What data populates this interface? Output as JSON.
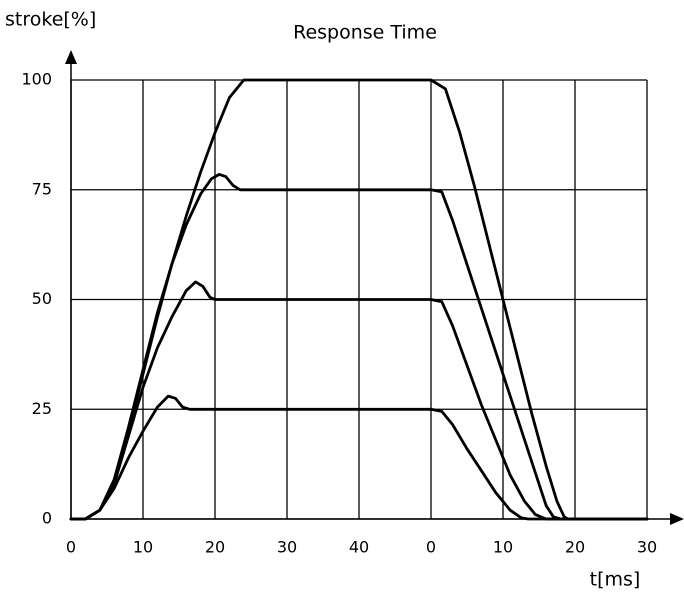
{
  "chart_data": {
    "type": "line",
    "title": "Response Time",
    "y_label": "stroke[%]",
    "x_label": "t[ms]",
    "xlim": [
      0,
      80
    ],
    "ylim": [
      0,
      100
    ],
    "xticks": [
      0,
      10,
      20,
      30,
      40,
      {
        "value": 50,
        "label": "0"
      },
      {
        "value": 60,
        "label": "10"
      },
      {
        "value": 70,
        "label": "20"
      },
      {
        "value": 80,
        "label": "30"
      }
    ],
    "yticks": [
      0,
      25,
      50,
      75,
      100
    ],
    "grid": true,
    "series": [
      {
        "color": "#000000",
        "x": [
          0,
          2,
          4,
          6,
          8,
          10,
          12,
          14,
          16,
          18,
          20,
          22,
          24,
          50,
          52,
          54,
          56,
          58,
          60,
          62,
          64,
          66,
          67.5,
          68.5,
          69,
          80
        ],
        "values": [
          0,
          0,
          2,
          8,
          20,
          33,
          46,
          58,
          69,
          79,
          88,
          96,
          100,
          100,
          98,
          88,
          76,
          63,
          50,
          37,
          24,
          12,
          4,
          0.5,
          0,
          0
        ]
      },
      {
        "color": "#000000",
        "x": [
          0,
          2,
          4,
          6,
          8,
          10,
          12,
          14,
          16,
          18,
          19.5,
          20.6,
          21.5,
          22.5,
          23.5,
          50,
          51.5,
          53,
          55,
          57,
          59,
          61,
          63,
          65,
          66,
          67,
          68,
          80
        ],
        "values": [
          0,
          0,
          2,
          9,
          21,
          34,
          47,
          58,
          67,
          74,
          77.5,
          78.5,
          78,
          76,
          75,
          75,
          74.5,
          68,
          58,
          48,
          38,
          28,
          18,
          8,
          3,
          0.5,
          0,
          0
        ]
      },
      {
        "color": "#000000",
        "x": [
          0,
          2,
          4,
          6,
          8,
          10,
          12,
          14,
          16,
          17.3,
          18.3,
          19.3,
          20,
          50,
          51.5,
          53,
          55,
          57,
          59,
          61,
          63,
          64.5,
          66,
          80
        ],
        "values": [
          0,
          0,
          2,
          8,
          19,
          30,
          39,
          46,
          52,
          54,
          53,
          50.5,
          50,
          50,
          49.5,
          44,
          35,
          26,
          18,
          10,
          4,
          1,
          0,
          0
        ]
      },
      {
        "color": "#000000",
        "x": [
          0,
          2,
          4,
          6,
          8,
          10,
          12,
          13.5,
          14.5,
          15.5,
          16.5,
          50,
          51.5,
          53,
          55,
          57,
          59,
          61,
          62.5,
          63.5,
          80
        ],
        "values": [
          0,
          0,
          2,
          7,
          14,
          20,
          25.5,
          28,
          27.5,
          25.5,
          25,
          25,
          24.5,
          21.5,
          16,
          11,
          6,
          2,
          0.3,
          0,
          0
        ]
      }
    ]
  }
}
